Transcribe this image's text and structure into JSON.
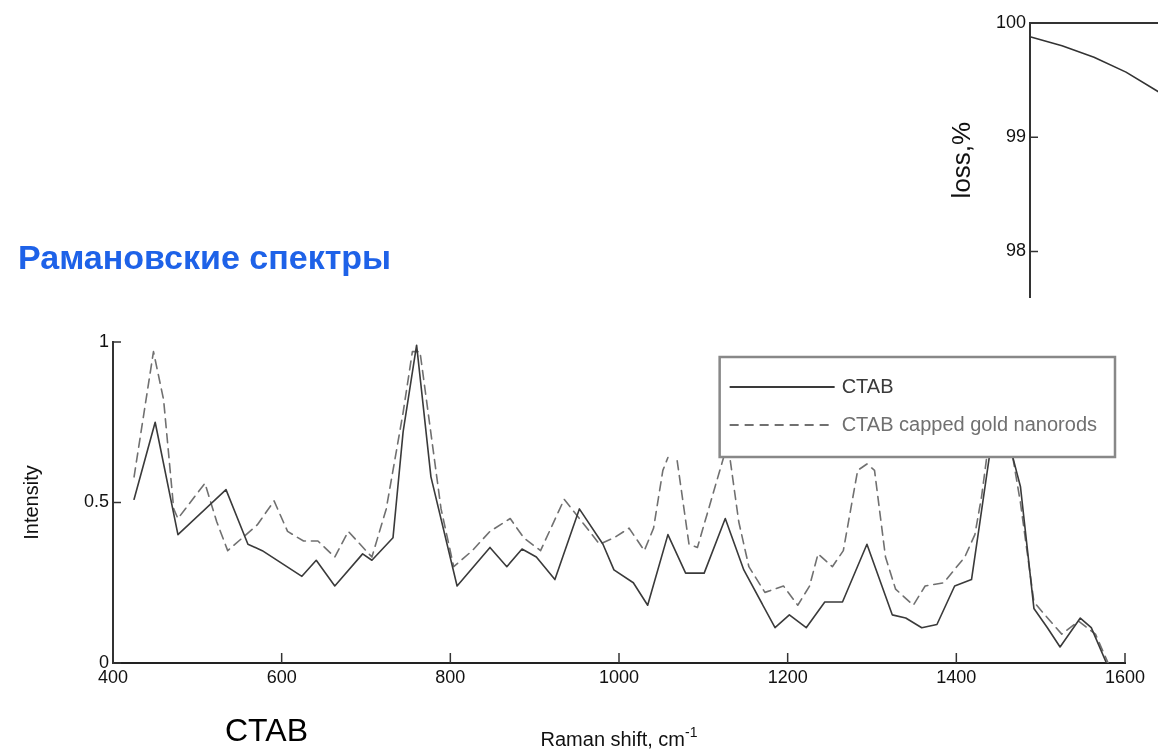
{
  "chart_data": [
    {
      "type": "line",
      "title": "Рамановские спектры",
      "xlabel": "Raman shift, cm$^{-1}$",
      "ylabel": "Intensity",
      "annotations": [
        "CTAB"
      ],
      "xlim": [
        400,
        1600
      ],
      "xticks": [
        400,
        600,
        800,
        1000,
        1200,
        1400,
        1600
      ],
      "ylim": [
        0,
        1
      ],
      "yticks": [
        0,
        0.5,
        1
      ],
      "legend": "top right",
      "marker": "none",
      "grid": false,
      "series": [
        {
          "name": "CTAB",
          "color": "#3a3a3a",
          "line_style": "solid",
          "x": [
            425,
            450,
            477,
            534,
            560,
            577,
            624,
            641,
            663,
            696,
            707,
            732,
            744,
            760,
            777,
            808,
            847,
            867,
            885,
            902,
            924,
            953,
            981,
            994,
            1017,
            1034,
            1058,
            1079,
            1101,
            1126,
            1148,
            1185,
            1202,
            1222,
            1244,
            1265,
            1294,
            1324,
            1340,
            1359,
            1377,
            1398,
            1418,
            1428,
            1439,
            1453,
            1467,
            1476,
            1492,
            1508,
            1523,
            1547,
            1560,
            1578
          ],
          "values": [
            0.51,
            0.75,
            0.4,
            0.54,
            0.37,
            0.35,
            0.27,
            0.32,
            0.24,
            0.34,
            0.32,
            0.39,
            0.72,
            0.99,
            0.58,
            0.24,
            0.36,
            0.3,
            0.355,
            0.33,
            0.26,
            0.48,
            0.37,
            0.29,
            0.25,
            0.18,
            0.4,
            0.28,
            0.28,
            0.45,
            0.29,
            0.11,
            0.15,
            0.11,
            0.19,
            0.19,
            0.37,
            0.15,
            0.14,
            0.11,
            0.12,
            0.24,
            0.26,
            0.44,
            0.64,
            null,
            0.64,
            0.55,
            0.17,
            0.11,
            0.05,
            0.14,
            0.11,
            0
          ]
        },
        {
          "name": "CTAB capped gold nanorods",
          "color": "#707070",
          "line_style": "dashed",
          "x": [
            425,
            448,
            460,
            472,
            477,
            509,
            523,
            536,
            571,
            591,
            607,
            626,
            643,
            663,
            679,
            707,
            724,
            744,
            755,
            764,
            789,
            804,
            826,
            847,
            871,
            887,
            907,
            935,
            977,
            994,
            1012,
            1030,
            1041,
            1052,
            1058,
            1064,
            1069,
            1083,
            1093,
            1114,
            1124,
            1128,
            1132,
            1142,
            1154,
            1173,
            1195,
            1212,
            1226,
            1236,
            1253,
            1266,
            1283,
            1294,
            1303,
            1316,
            1328,
            1349,
            1363,
            1385,
            1410,
            1422,
            1430,
            1436,
            1453,
            1467,
            1476,
            1492,
            1505,
            1525,
            1545,
            1565,
            1580
          ],
          "values": [
            0.58,
            0.97,
            0.82,
            0.48,
            0.45,
            0.56,
            0.44,
            0.35,
            0.43,
            0.505,
            0.41,
            0.38,
            0.38,
            0.33,
            0.41,
            0.33,
            0.48,
            0.78,
            0.97,
            0.97,
            0.48,
            0.3,
            0.35,
            0.41,
            0.45,
            0.39,
            0.35,
            0.51,
            0.37,
            0.39,
            0.42,
            0.35,
            0.42,
            0.6,
            0.64,
            null,
            0.63,
            0.37,
            0.36,
            0.55,
            0.64,
            null,
            0.63,
            0.44,
            0.3,
            0.22,
            0.24,
            0.18,
            0.24,
            0.34,
            0.3,
            0.35,
            0.6,
            0.62,
            0.6,
            0.33,
            0.23,
            0.18,
            0.24,
            0.25,
            0.33,
            0.4,
            0.52,
            0.64,
            null,
            0.64,
            0.5,
            0.19,
            0.15,
            0.09,
            0.13,
            0.09,
            0
          ]
        }
      ]
    },
    {
      "type": "line",
      "ylabel": "loss,%",
      "categories": [
        null,
        null,
        null,
        null,
        null
      ],
      "values": [
        99.88,
        99.8,
        99.7,
        99.57,
        99.4
      ],
      "color": "#333333",
      "ylim": [
        97.6,
        100
      ],
      "yticks": [
        98,
        99,
        100
      ],
      "tick_labels": "y",
      "marker": "none",
      "grid": false
    }
  ]
}
